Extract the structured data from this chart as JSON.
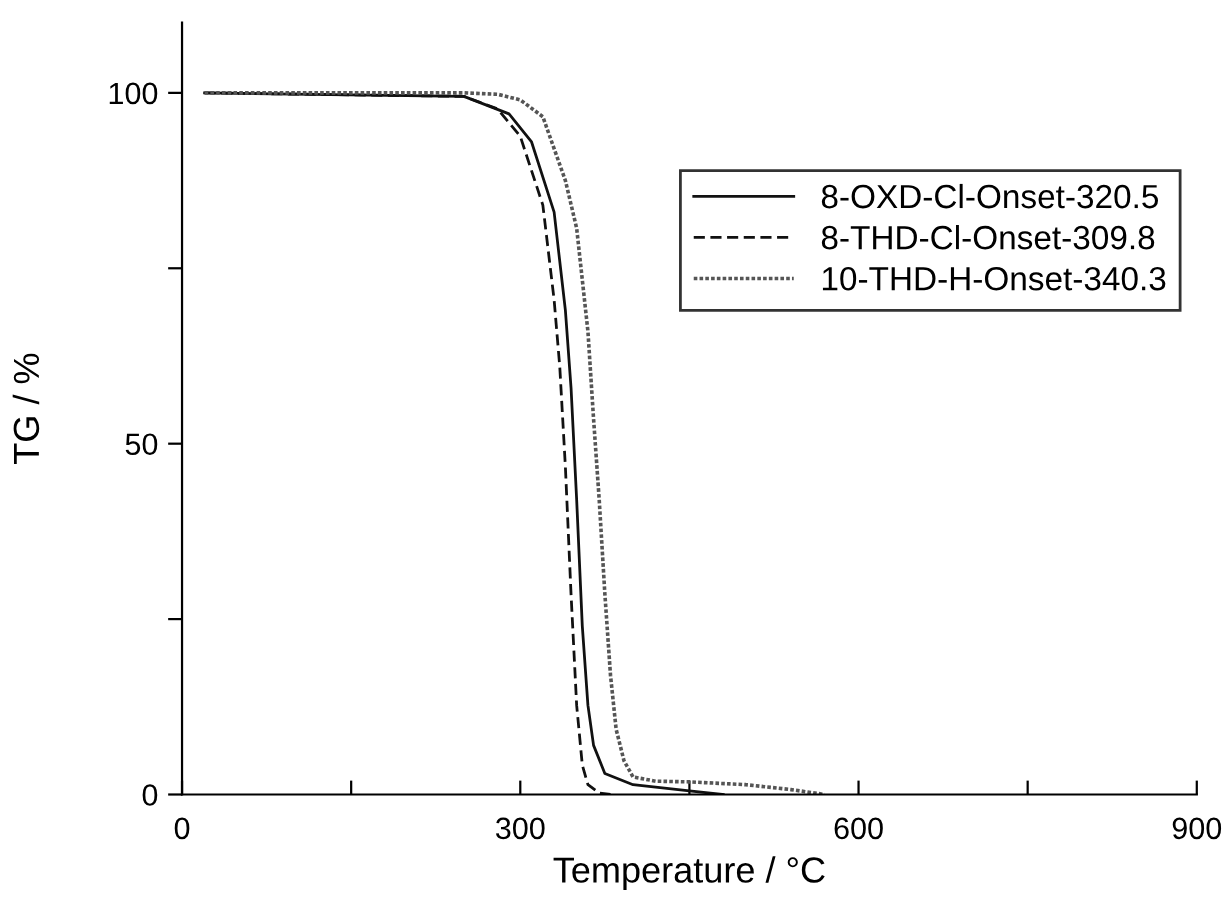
{
  "chart_data": {
    "type": "line",
    "xlabel": "Temperature / °C",
    "ylabel": "TG / %",
    "xlim": [
      0,
      900
    ],
    "ylim": [
      0,
      110
    ],
    "xticks": [
      0,
      {
        "value": 150,
        "label": null
      },
      300,
      {
        "value": 450,
        "label": null
      },
      600,
      {
        "value": 750,
        "label": null
      },
      900
    ],
    "yticks": [
      0,
      {
        "value": 25,
        "label": null
      },
      50,
      {
        "value": 75,
        "label": null
      },
      100
    ],
    "grid": false,
    "legend": "top right",
    "marker": "none",
    "series": [
      {
        "name": "8-OXD-Cl-Onset-320.5",
        "color": "#111111",
        "line_style": "solid",
        "x": [
          20,
          250,
          290,
          310,
          330,
          340,
          345,
          350,
          355,
          360,
          365,
          375,
          400,
          450,
          480
        ],
        "values": [
          100,
          99.5,
          97,
          93,
          83,
          69,
          58,
          42,
          24,
          12.7,
          7,
          3,
          1.4,
          0.5,
          0
        ]
      },
      {
        "name": "8-THD-Cl-Onset-309.8",
        "color": "#111111",
        "line_style": "dashed",
        "x": [
          20,
          250,
          280,
          300,
          320,
          330,
          335,
          340,
          345,
          350,
          355,
          360,
          370,
          380
        ],
        "values": [
          100,
          99.5,
          97.7,
          93.8,
          84,
          70.5,
          61,
          46.7,
          28.6,
          12.7,
          4.2,
          1.4,
          0.2,
          0
        ]
      },
      {
        "name": "10-THD-H-Onset-340.3",
        "color": "#555555",
        "line_style": "dotted",
        "x": [
          20,
          250,
          280,
          300,
          320,
          340,
          350,
          360,
          365,
          370,
          375,
          380,
          385,
          392,
          400,
          420,
          450,
          500,
          540,
          570
        ],
        "values": [
          100,
          100,
          99.8,
          99,
          96.6,
          87.5,
          80.7,
          66,
          53.5,
          42,
          28.6,
          17,
          9.3,
          4.8,
          2.5,
          1.9,
          1.8,
          1.4,
          0.7,
          0
        ]
      }
    ]
  }
}
